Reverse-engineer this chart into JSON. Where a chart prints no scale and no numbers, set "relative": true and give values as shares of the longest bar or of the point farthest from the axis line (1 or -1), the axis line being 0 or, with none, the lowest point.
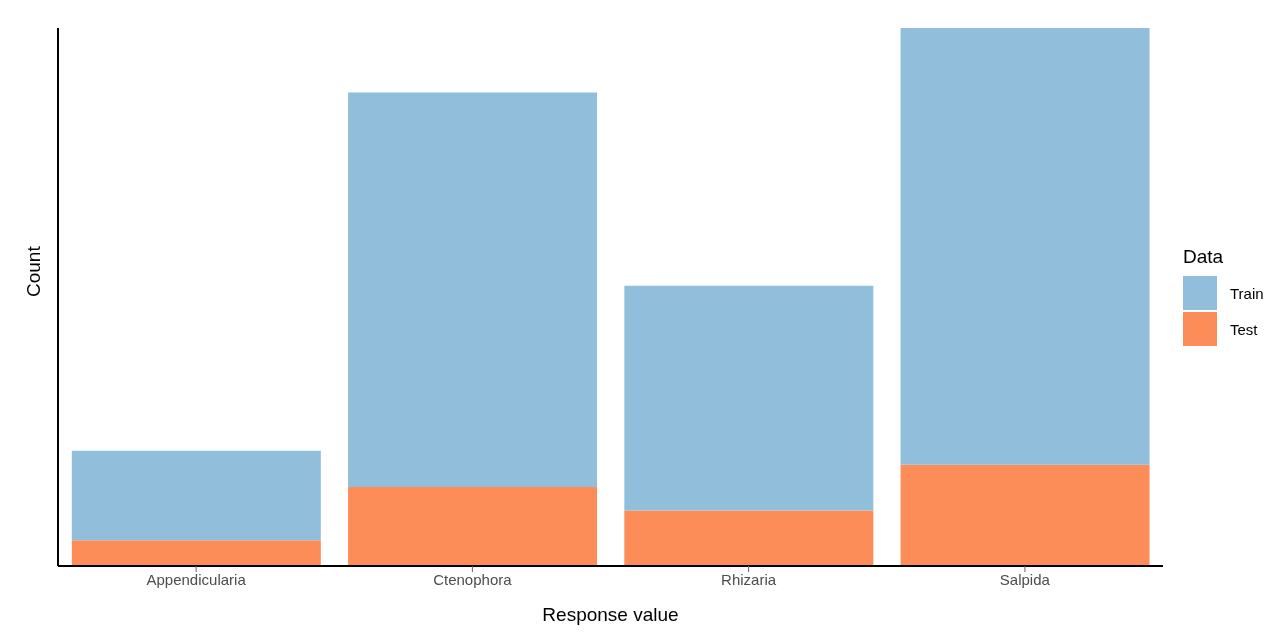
{
  "chart_data": {
    "type": "bar",
    "xlabel": "Response value",
    "ylabel": "Count",
    "legend_title": "Data",
    "categories": [
      "Appendicularia",
      "Ctenophora",
      "Rhizaria",
      "Salpida"
    ],
    "relative": true,
    "stacked": true,
    "tick_labels": "x",
    "legend": "right",
    "grid": false,
    "series": [
      {
        "name": "Test",
        "color": "#fc8d59",
        "values": [
          0.048,
          0.147,
          0.103,
          0.188
        ]
      },
      {
        "name": "Train",
        "color": "#91bfdb",
        "values": [
          0.166,
          0.733,
          0.418,
          0.812
        ]
      }
    ]
  }
}
